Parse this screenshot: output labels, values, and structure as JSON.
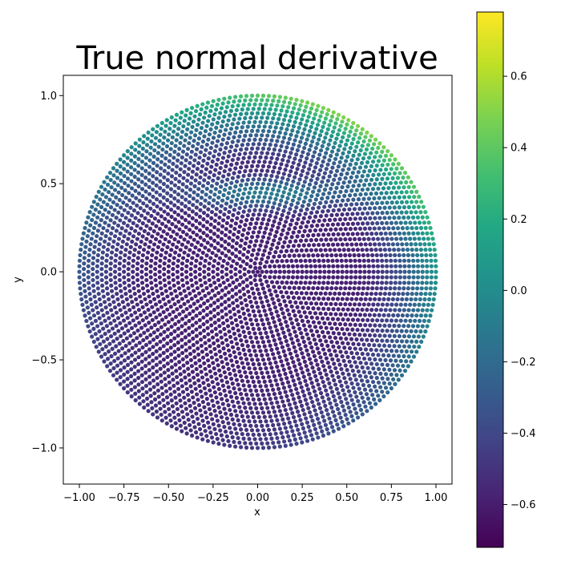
{
  "chart_data": {
    "type": "scatter",
    "title": "True normal derivative",
    "xlabel": "x",
    "ylabel": "y",
    "xlim": [
      -1.09,
      1.09
    ],
    "ylim": [
      -1.205,
      1.115
    ],
    "xticks": [
      -1.0,
      -0.75,
      -0.5,
      -0.25,
      0.0,
      0.25,
      0.5,
      0.75,
      1.0
    ],
    "xtick_labels": [
      "−1.00",
      "−0.75",
      "−0.50",
      "−0.25",
      "0.00",
      "0.25",
      "0.50",
      "0.75",
      "1.00"
    ],
    "yticks": [
      -1.0,
      -0.5,
      0.0,
      0.5,
      1.0
    ],
    "ytick_labels": [
      "−1.0",
      "−0.5",
      "0.0",
      "0.5",
      "1.0"
    ],
    "grid": false,
    "colormap": "viridis",
    "colorbar": {
      "vmin": -0.72,
      "vmax": 0.78,
      "ticks": [
        -0.6,
        -0.4,
        -0.2,
        0.0,
        0.2,
        0.4,
        0.6
      ],
      "tick_labels": [
        "−0.6",
        "−0.4",
        "−0.2",
        "0.0",
        "0.2",
        "0.4",
        "0.6"
      ]
    },
    "point_layout": {
      "description": "points on concentric rings of a unit disk, ring radii increasing outward",
      "ring_count": 40,
      "points_on_outer_ring": 200,
      "point_color_by_region": [
        {
          "region": "center",
          "value": -0.6
        },
        {
          "region": "inner rings",
          "value": -0.55
        },
        {
          "region": "band near y=0.45",
          "value": 0.05
        },
        {
          "region": "lower half, r > 0.8",
          "value": -0.6
        },
        {
          "region": "upper-right rim near (0.7, 0.7)",
          "value": 0.55
        },
        {
          "region": "top rim near (0.25, 0.97)",
          "value": 0.65
        },
        {
          "region": "right rim near (1.0, 0.0)",
          "value": 0.05
        },
        {
          "region": "left rim near (-1.0, 0.0)",
          "value": -0.35
        }
      ]
    }
  }
}
